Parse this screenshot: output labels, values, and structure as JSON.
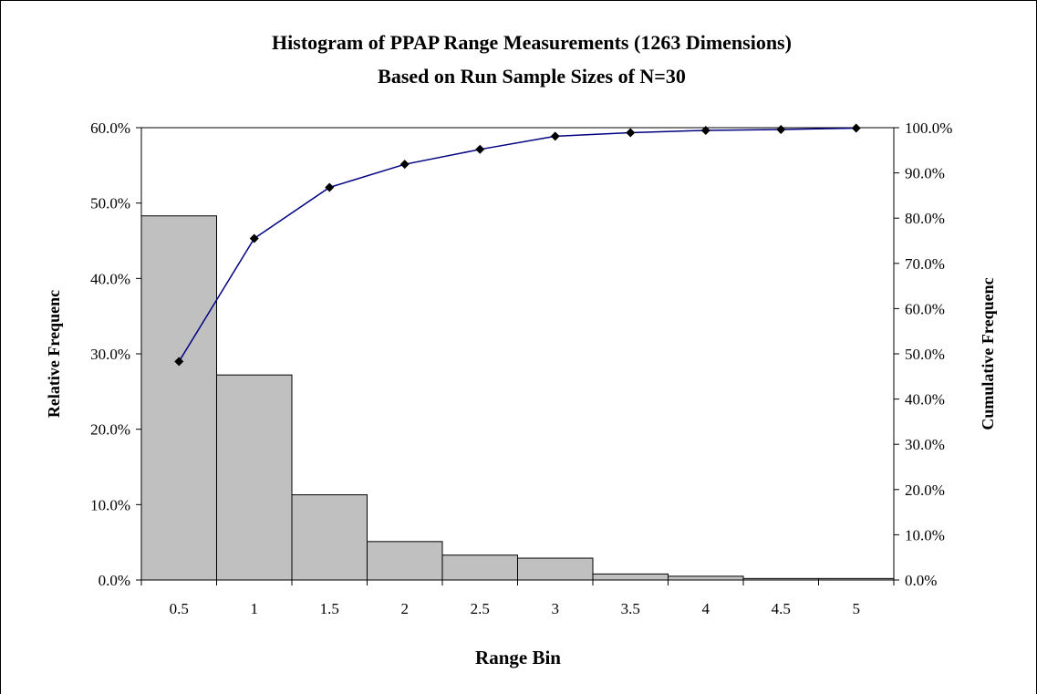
{
  "chart_data": {
    "type": "bar",
    "title": "Histogram of PPAP Range Measurements (1263 Dimensions)",
    "subtitle": "Based on Run Sample Sizes of N=30",
    "xlabel": "Range Bin",
    "ylabel": "Relative Frequenc",
    "y2label": "Cumulative Frequenc",
    "categories": [
      "0.5",
      "1",
      "1.5",
      "2",
      "2.5",
      "3",
      "3.5",
      "4",
      "4.5",
      "5"
    ],
    "series": [
      {
        "type": "bar",
        "axis": "left",
        "values": [
          48.3,
          27.2,
          11.3,
          5.1,
          3.3,
          2.9,
          0.8,
          0.5,
          0.2,
          0.2
        ]
      },
      {
        "type": "line",
        "axis": "right",
        "values": [
          48.3,
          75.5,
          86.8,
          91.9,
          95.2,
          98.1,
          98.9,
          99.4,
          99.6,
          99.9
        ]
      }
    ],
    "ylim": [
      0,
      60
    ],
    "y2lim": [
      0,
      100
    ],
    "yticks": [
      "0.0%",
      "10.0%",
      "20.0%",
      "30.0%",
      "40.0%",
      "50.0%",
      "60.0%"
    ],
    "y2ticks": [
      "0.0%",
      "10.0%",
      "20.0%",
      "30.0%",
      "40.0%",
      "50.0%",
      "60.0%",
      "70.0%",
      "80.0%",
      "90.0%",
      "100.0%"
    ],
    "colors": {
      "bar_fill": "#c0c0c0",
      "bar_stroke": "#000000",
      "line": "#000080",
      "marker": "#000000"
    },
    "grid": false,
    "legend": "none"
  }
}
